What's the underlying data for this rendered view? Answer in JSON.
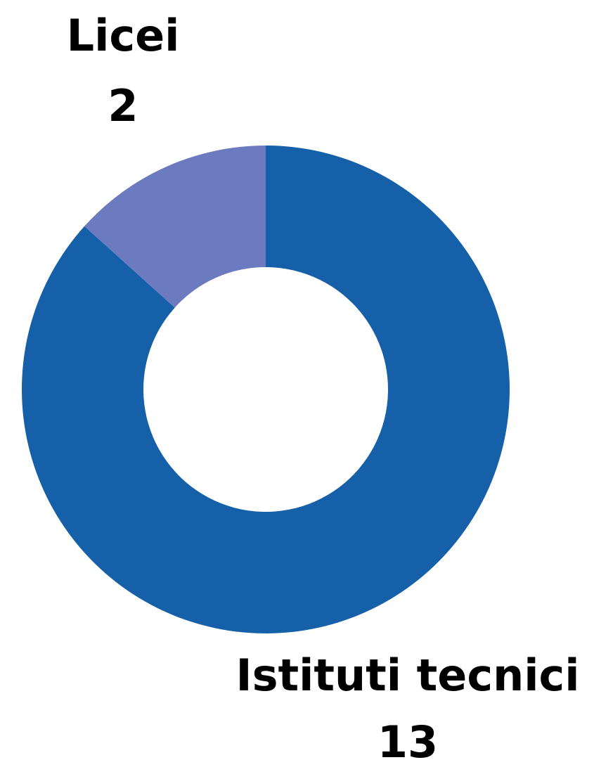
{
  "chart_data": {
    "type": "donut",
    "categories": [
      "Istituti tecnici",
      "Licei"
    ],
    "values": [
      13,
      2
    ],
    "colors": [
      "#1560a8",
      "#6c7bbf"
    ]
  }
}
